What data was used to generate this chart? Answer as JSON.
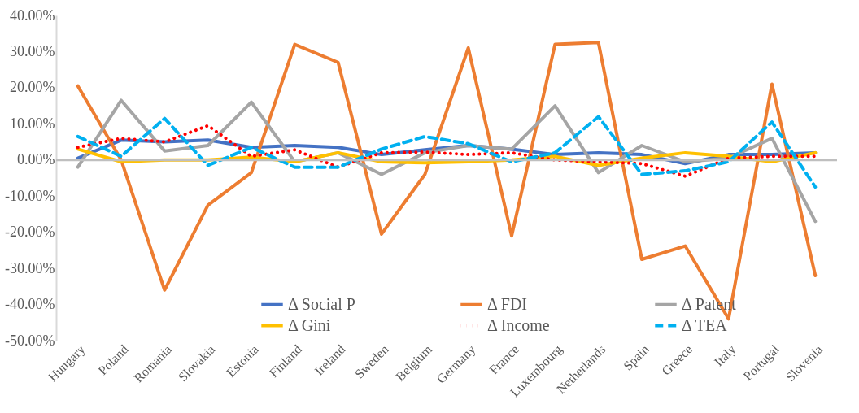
{
  "chart_data": {
    "type": "line",
    "categories": [
      "Hungary",
      "Poland",
      "Romania",
      "Slovakia",
      "Estonia",
      "Finland",
      "Ireland",
      "Sweden",
      "Belgium",
      "Germany",
      "France",
      "Luxembourg",
      "Netherlands",
      "Spain",
      "Greece",
      "Italy",
      "Portugal",
      "Slovenia"
    ],
    "series": [
      {
        "name": "Δ Social P",
        "color": "#4472c4",
        "line_style": "solid",
        "values": [
          0.5,
          5.5,
          5,
          5.5,
          3.5,
          4,
          3.5,
          1.5,
          2.8,
          4,
          3,
          1.5,
          2,
          1.5,
          -1,
          1.5,
          1.5,
          2
        ]
      },
      {
        "name": "Δ FDI",
        "color": "#ed7d31",
        "line_style": "solid",
        "values": [
          20.5,
          0,
          -36,
          -12.5,
          -3.5,
          32,
          27,
          -20.5,
          -4,
          31,
          -21,
          32,
          32.5,
          -27.5,
          -23.8,
          -44,
          21,
          -32
        ]
      },
      {
        "name": "Δ Patent",
        "color": "#a5a5a5",
        "line_style": "solid",
        "values": [
          -2,
          16.5,
          2.5,
          4,
          16,
          -0.5,
          2,
          -4,
          2,
          4,
          3,
          15,
          -3.5,
          4,
          -0.5,
          0.5,
          6,
          -17
        ]
      },
      {
        "name": "Δ Gini",
        "color": "#ffc000",
        "line_style": "solid",
        "values": [
          3,
          -0.5,
          0,
          0,
          0.8,
          -0.5,
          2,
          -0.5,
          -0.8,
          -0.5,
          0,
          1,
          -1.5,
          0.5,
          2,
          1,
          -0.5,
          2
        ]
      },
      {
        "name": "Δ Income",
        "color": "#ff0000",
        "line_style": "dotted",
        "values": [
          3.5,
          6,
          5,
          9.5,
          1,
          2.8,
          -2,
          2,
          2.2,
          1.5,
          2,
          0,
          -0.5,
          -1,
          -4.5,
          0.5,
          1,
          1
        ]
      },
      {
        "name": "Δ TEA",
        "color": "#00b0f0",
        "line_style": "dashed",
        "values": [
          6.5,
          1,
          11.5,
          -1.5,
          3.5,
          -2,
          -2,
          3,
          6.5,
          4.5,
          -0.5,
          2,
          12,
          -4,
          -3,
          -0.5,
          10.5,
          -7.5
        ]
      }
    ],
    "ylim": [
      -50,
      40
    ],
    "yticks": [
      {
        "value": -50,
        "label": "-50.00%"
      },
      {
        "value": -40,
        "label": "-40.00%"
      },
      {
        "value": -30,
        "label": "-30.00%"
      },
      {
        "value": -20,
        "label": "-20.00%"
      },
      {
        "value": -10,
        "label": "-10.00%"
      },
      {
        "value": 0,
        "label": "0.00%"
      },
      {
        "value": 10,
        "label": "10.00%"
      },
      {
        "value": 20,
        "label": "20.00%"
      },
      {
        "value": 30,
        "label": "30.00%"
      },
      {
        "value": 40,
        "label": "40.00%"
      }
    ],
    "ref_lines": [
      {
        "axis": "y",
        "value": 0,
        "color": "#bfbfbf"
      }
    ],
    "grid": false,
    "legend": "bottom"
  }
}
